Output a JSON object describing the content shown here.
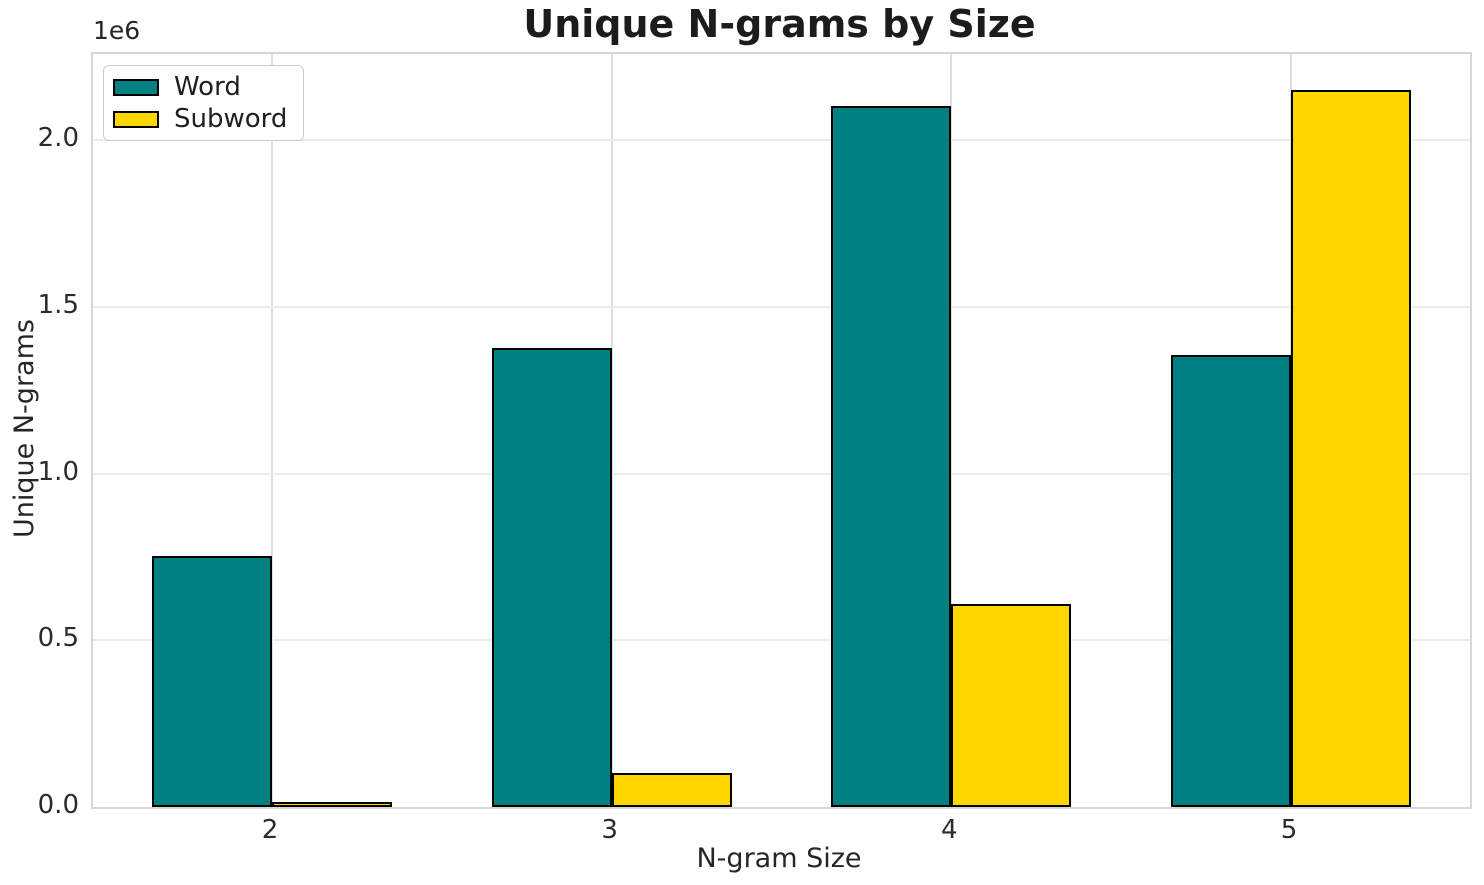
{
  "chart_data": {
    "type": "bar",
    "title": "Unique N-grams by Size",
    "xlabel": "N-gram Size",
    "ylabel": "Unique N-grams",
    "y_offset_label": "1e6",
    "categories": [
      "2",
      "3",
      "4",
      "5"
    ],
    "series": [
      {
        "name": "Word",
        "color": "#008080",
        "values": [
          753000,
          1376000,
          2102000,
          1355000
        ]
      },
      {
        "name": "Subword",
        "color": "#FFD700",
        "values": [
          15000,
          102000,
          608000,
          2149000
        ]
      }
    ],
    "ylim": [
      0,
      2258000
    ],
    "yticks": [
      0,
      500000,
      1000000,
      1500000,
      2000000
    ],
    "ytick_labels": [
      "0.0",
      "0.5",
      "1.0",
      "1.5",
      "2.0"
    ],
    "grid": true,
    "legend_position": "upper left",
    "bar_edge_color": "#000000"
  }
}
